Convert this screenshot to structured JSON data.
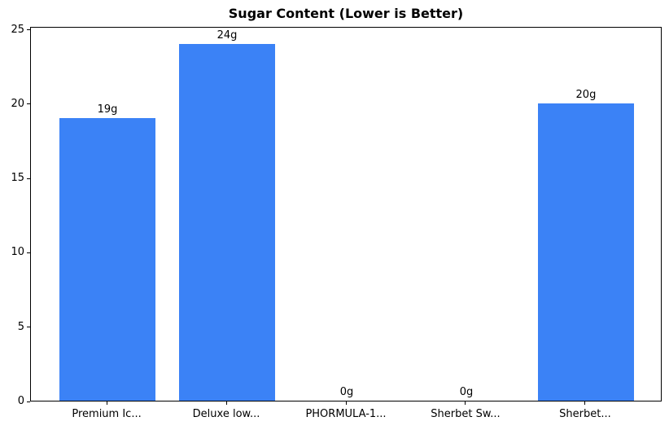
{
  "chart_data": {
    "type": "bar",
    "title": "Sugar Content (Lower is Better)",
    "categories": [
      "Premium Ic...",
      "Deluxe low...",
      "PHORMULA-1...",
      "Sherbet Sw...",
      "Sherbet..."
    ],
    "values": [
      19,
      24,
      0,
      0,
      20
    ],
    "bar_labels": [
      "19g",
      "24g",
      "0g",
      "0g",
      "20g"
    ],
    "xlabel": "",
    "ylabel": "",
    "ylim": [
      0,
      25.2
    ],
    "yticks": [
      0,
      5,
      10,
      15,
      20,
      25
    ],
    "bar_color": "#3b82f6",
    "axis_color": "#000000",
    "legend_position": "none",
    "grid": false
  }
}
